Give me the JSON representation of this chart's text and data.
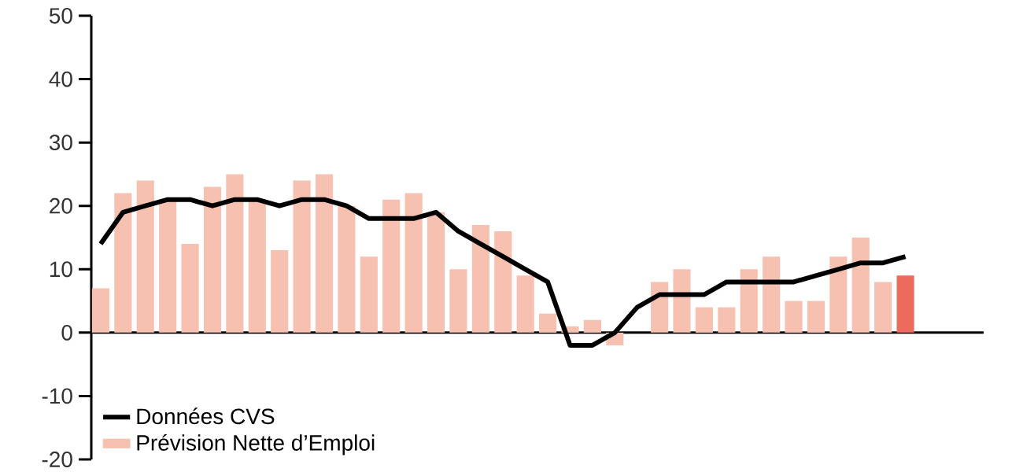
{
  "chart_data": {
    "type": "bar",
    "categories": [
      null,
      null,
      null,
      null,
      null,
      null,
      null,
      null,
      null,
      null,
      null,
      null,
      null,
      null,
      null,
      null,
      null,
      null,
      null,
      null,
      null,
      null,
      null,
      null,
      null,
      null,
      null,
      null,
      null,
      null,
      null,
      null,
      null,
      null,
      null,
      null,
      null
    ],
    "series": [
      {
        "name": "Données CVS",
        "type": "line",
        "color": "#000000",
        "line_style": "solid",
        "values": [
          14,
          19,
          20,
          21,
          21,
          20,
          21,
          21,
          20,
          21,
          21,
          20,
          18,
          18,
          18,
          19,
          16,
          14,
          12,
          10,
          8,
          -2,
          -2,
          0,
          4,
          6,
          6,
          6,
          8,
          8,
          8,
          8,
          9,
          10,
          11,
          11,
          12
        ]
      },
      {
        "name": "Prévision Nette d’Emploi",
        "color": "#f7c1b2",
        "colors": [
          "#f7c1b2",
          "#f7c1b2",
          "#f7c1b2",
          "#f7c1b2",
          "#f7c1b2",
          "#f7c1b2",
          "#f7c1b2",
          "#f7c1b2",
          "#f7c1b2",
          "#f7c1b2",
          "#f7c1b2",
          "#f7c1b2",
          "#f7c1b2",
          "#f7c1b2",
          "#f7c1b2",
          "#f7c1b2",
          "#f7c1b2",
          "#f7c1b2",
          "#f7c1b2",
          "#f7c1b2",
          "#f7c1b2",
          "#f7c1b2",
          "#f7c1b2",
          "#f7c1b2",
          "#f7c1b2",
          "#f7c1b2",
          "#f7c1b2",
          "#f7c1b2",
          "#f7c1b2",
          "#f7c1b2",
          "#f7c1b2",
          "#f7c1b2",
          "#f7c1b2",
          "#f7c1b2",
          "#f7c1b2",
          "#f7c1b2",
          "#ec6b5e"
        ],
        "values": [
          7,
          22,
          24,
          21,
          14,
          23,
          25,
          21,
          13,
          24,
          25,
          20,
          12,
          21,
          22,
          19,
          10,
          17,
          16,
          9,
          3,
          1,
          2,
          -2,
          0,
          8,
          10,
          4,
          4,
          10,
          12,
          5,
          5,
          12,
          15,
          8,
          9
        ]
      }
    ],
    "ylim": [
      -20,
      50
    ],
    "yticks": [
      -20,
      -10,
      0,
      10,
      20,
      30,
      40,
      50
    ],
    "legend": "bottom left"
  }
}
